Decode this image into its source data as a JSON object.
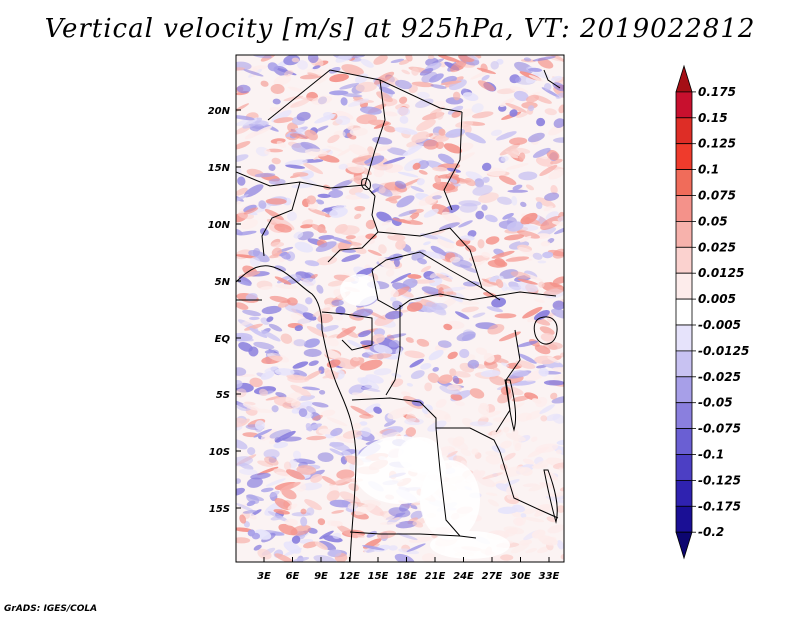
{
  "title": "Vertical velocity [m/s] at 925hPa, VT: 2019022812",
  "footer": "GrADS: IGES/COLA",
  "map": {
    "lat_labels": [
      "20N",
      "15N",
      "10N",
      "5N",
      "EQ",
      "5S",
      "10S",
      "15S"
    ],
    "lon_labels": [
      "3E",
      "6E",
      "9E",
      "12E",
      "15E",
      "18E",
      "21E",
      "24E",
      "27E",
      "30E",
      "33E"
    ]
  },
  "colorbar": {
    "levels": [
      "0.175",
      "0.15",
      "0.125",
      "0.1",
      "0.075",
      "0.05",
      "0.025",
      "0.0125",
      "0.005",
      "-0.005",
      "-0.0125",
      "-0.025",
      "-0.05",
      "-0.075",
      "-0.1",
      "-0.125",
      "-0.175",
      "-0.2"
    ],
    "colors": [
      "#a50f15",
      "#c8102e",
      "#de2d26",
      "#ef3b2c",
      "#f06c5a",
      "#f4928a",
      "#f7b2ac",
      "#fbd2cf",
      "#fdeceb",
      "#ffffff",
      "#e6e3fb",
      "#c8c2f2",
      "#a79fe8",
      "#8a7fde",
      "#6a5fd3",
      "#4c3fc4",
      "#2f22b0",
      "#1a0f95",
      "#0d0670"
    ]
  }
}
